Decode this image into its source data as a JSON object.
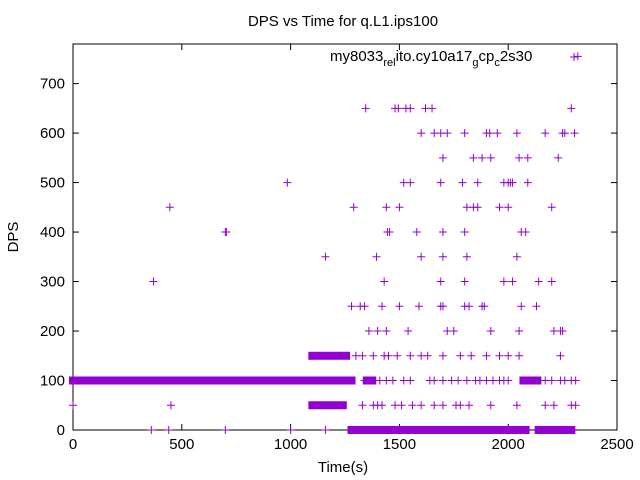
{
  "chart_data": {
    "type": "scatter",
    "title": "DPS vs Time for q.L1.ips100",
    "xlabel": "Time(s)",
    "ylabel": "DPS",
    "xlim": [
      0,
      2500
    ],
    "ylim": [
      0,
      780
    ],
    "xticks": [
      0,
      500,
      1000,
      1500,
      2000,
      2500
    ],
    "yticks": [
      0,
      100,
      200,
      300,
      400,
      500,
      600,
      700
    ],
    "grid": false,
    "legend": {
      "placement": "top-right",
      "parts": [
        "my8033",
        "rel",
        "ito.cy10a17",
        "g",
        "cp",
        "c",
        "2s30"
      ]
    },
    "marker": "+",
    "series": [
      {
        "name": "my8033_rel_ito.cy10a17_gcp_c2s30",
        "color": "#9400d3",
        "points": [
          [
            0,
            50
          ],
          [
            370,
            300
          ],
          [
            445,
            450
          ],
          [
            450,
            50
          ],
          [
            700,
            400
          ],
          [
            705,
            400
          ],
          [
            985,
            500
          ],
          [
            1160,
            350
          ],
          [
            1290,
            450
          ],
          [
            1345,
            650
          ],
          [
            1395,
            350
          ],
          [
            1430,
            300
          ],
          [
            1440,
            450
          ],
          [
            1445,
            400
          ],
          [
            1455,
            400
          ],
          [
            1500,
            450
          ],
          [
            1480,
            650
          ],
          [
            1495,
            650
          ],
          [
            1530,
            650
          ],
          [
            1550,
            650
          ],
          [
            1600,
            600
          ],
          [
            1620,
            650
          ],
          [
            1650,
            650
          ],
          [
            1660,
            600
          ],
          [
            1690,
            600
          ],
          [
            1700,
            550
          ],
          [
            1720,
            600
          ],
          [
            1800,
            600
          ],
          [
            1840,
            550
          ],
          [
            1880,
            550
          ],
          [
            1900,
            600
          ],
          [
            1915,
            600
          ],
          [
            1920,
            550
          ],
          [
            1950,
            600
          ],
          [
            1980,
            500
          ],
          [
            2000,
            500
          ],
          [
            2010,
            500
          ],
          [
            2040,
            600
          ],
          [
            2050,
            550
          ],
          [
            2090,
            550
          ],
          [
            2170,
            600
          ],
          [
            2230,
            550
          ],
          [
            2250,
            600
          ],
          [
            2260,
            600
          ],
          [
            2290,
            650
          ],
          [
            2305,
            600
          ],
          [
            2320,
            755
          ],
          [
            1520,
            500
          ],
          [
            1550,
            500
          ],
          [
            1690,
            500
          ],
          [
            1790,
            500
          ],
          [
            1810,
            450
          ],
          [
            1860,
            500
          ],
          [
            1860,
            450
          ],
          [
            1960,
            450
          ],
          [
            2000,
            450
          ],
          [
            2020,
            500
          ],
          [
            2090,
            500
          ],
          [
            2200,
            450
          ],
          [
            1580,
            400
          ],
          [
            1700,
            400
          ],
          [
            1800,
            400
          ],
          [
            1840,
            450
          ],
          [
            2060,
            400
          ],
          [
            2080,
            400
          ],
          [
            2040,
            350
          ],
          [
            1810,
            350
          ],
          [
            1700,
            350
          ],
          [
            1600,
            350
          ],
          [
            1690,
            300
          ],
          [
            1800,
            300
          ],
          [
            1980,
            300
          ],
          [
            2020,
            300
          ],
          [
            2140,
            300
          ],
          [
            2200,
            300
          ],
          [
            1280,
            250
          ],
          [
            1320,
            250
          ],
          [
            1340,
            250
          ],
          [
            1420,
            250
          ],
          [
            1500,
            250
          ],
          [
            1590,
            250
          ],
          [
            1690,
            250
          ],
          [
            1700,
            250
          ],
          [
            1800,
            250
          ],
          [
            1820,
            250
          ],
          [
            1880,
            250
          ],
          [
            1890,
            250
          ],
          [
            2060,
            250
          ],
          [
            2130,
            250
          ],
          [
            1360,
            200
          ],
          [
            1400,
            200
          ],
          [
            1440,
            200
          ],
          [
            1540,
            200
          ],
          [
            1720,
            200
          ],
          [
            1750,
            200
          ],
          [
            1920,
            200
          ],
          [
            2050,
            200
          ],
          [
            2210,
            200
          ],
          [
            2240,
            200
          ],
          [
            2250,
            200
          ],
          [
            1300,
            150
          ],
          [
            1330,
            150
          ],
          [
            1380,
            150
          ],
          [
            1430,
            150
          ],
          [
            1450,
            150
          ],
          [
            1490,
            150
          ],
          [
            1550,
            150
          ],
          [
            1600,
            150
          ],
          [
            1630,
            150
          ],
          [
            1700,
            150
          ],
          [
            1780,
            150
          ],
          [
            1830,
            150
          ],
          [
            1900,
            150
          ],
          [
            1960,
            150
          ],
          [
            2000,
            150
          ],
          [
            2050,
            150
          ],
          [
            2240,
            150
          ],
          [
            1330,
            50
          ],
          [
            1380,
            50
          ],
          [
            1400,
            50
          ],
          [
            1420,
            50
          ],
          [
            1480,
            50
          ],
          [
            1510,
            50
          ],
          [
            1560,
            50
          ],
          [
            1600,
            50
          ],
          [
            1660,
            50
          ],
          [
            1700,
            50
          ],
          [
            1760,
            50
          ],
          [
            1780,
            50
          ],
          [
            1820,
            50
          ],
          [
            1920,
            50
          ],
          [
            2040,
            50
          ],
          [
            2170,
            50
          ],
          [
            2210,
            50
          ],
          [
            2290,
            50
          ],
          [
            2310,
            50
          ],
          [
            1340,
            100
          ],
          [
            1380,
            100
          ],
          [
            1410,
            100
          ],
          [
            1440,
            100
          ],
          [
            1470,
            100
          ],
          [
            1520,
            100
          ],
          [
            1550,
            100
          ],
          [
            1640,
            100
          ],
          [
            1660,
            100
          ],
          [
            1700,
            100
          ],
          [
            1740,
            100
          ],
          [
            1770,
            100
          ],
          [
            1810,
            100
          ],
          [
            1850,
            100
          ],
          [
            1870,
            100
          ],
          [
            1900,
            100
          ],
          [
            1930,
            100
          ],
          [
            1960,
            100
          ],
          [
            1980,
            100
          ],
          [
            2000,
            100
          ],
          [
            2150,
            100
          ],
          [
            2170,
            100
          ],
          [
            2200,
            100
          ],
          [
            2240,
            100
          ],
          [
            2260,
            100
          ],
          [
            2290,
            100
          ],
          [
            2310,
            100
          ],
          [
            360,
            0
          ],
          [
            440,
            0
          ],
          [
            700,
            0
          ],
          [
            1000,
            0
          ],
          [
            1160,
            0
          ]
        ],
        "runs": [
          [
            0,
            1280,
            100
          ],
          [
            1100,
            1255,
            150
          ],
          [
            1100,
            1240,
            50
          ],
          [
            1350,
            1375,
            100
          ],
          [
            2070,
            2130,
            100
          ],
          [
            1280,
            1330,
            0
          ],
          [
            1350,
            2080,
            0
          ],
          [
            2140,
            2290,
            0
          ]
        ]
      }
    ]
  }
}
